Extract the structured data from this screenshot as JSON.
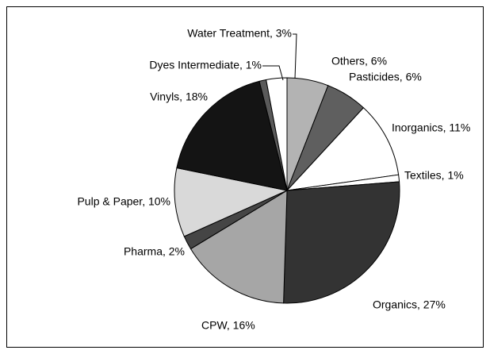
{
  "chart_data": {
    "type": "pie",
    "values": [
      6,
      6,
      11,
      1,
      27,
      16,
      2,
      10,
      18,
      1,
      3
    ],
    "value_labels": [
      "Others, 6%",
      "Pasticides, 6%",
      "Inorganics, 11%",
      "Textiles, 1%",
      "Organics, 27%",
      "CPW, 16%",
      "Pharma, 2%",
      "Pulp & Paper, 10%",
      "Vinyls, 18%",
      "Dyes Intermediate, 1%",
      "Water Treatment, 3%"
    ],
    "colors": [
      "#b3b3b3",
      "#5f5f5f",
      "#ffffff",
      "#ffffff",
      "#333333",
      "#a6a6a6",
      "#454545",
      "#d9d9d9",
      "#141414",
      "#5a5a5a",
      "#ffffff"
    ]
  }
}
